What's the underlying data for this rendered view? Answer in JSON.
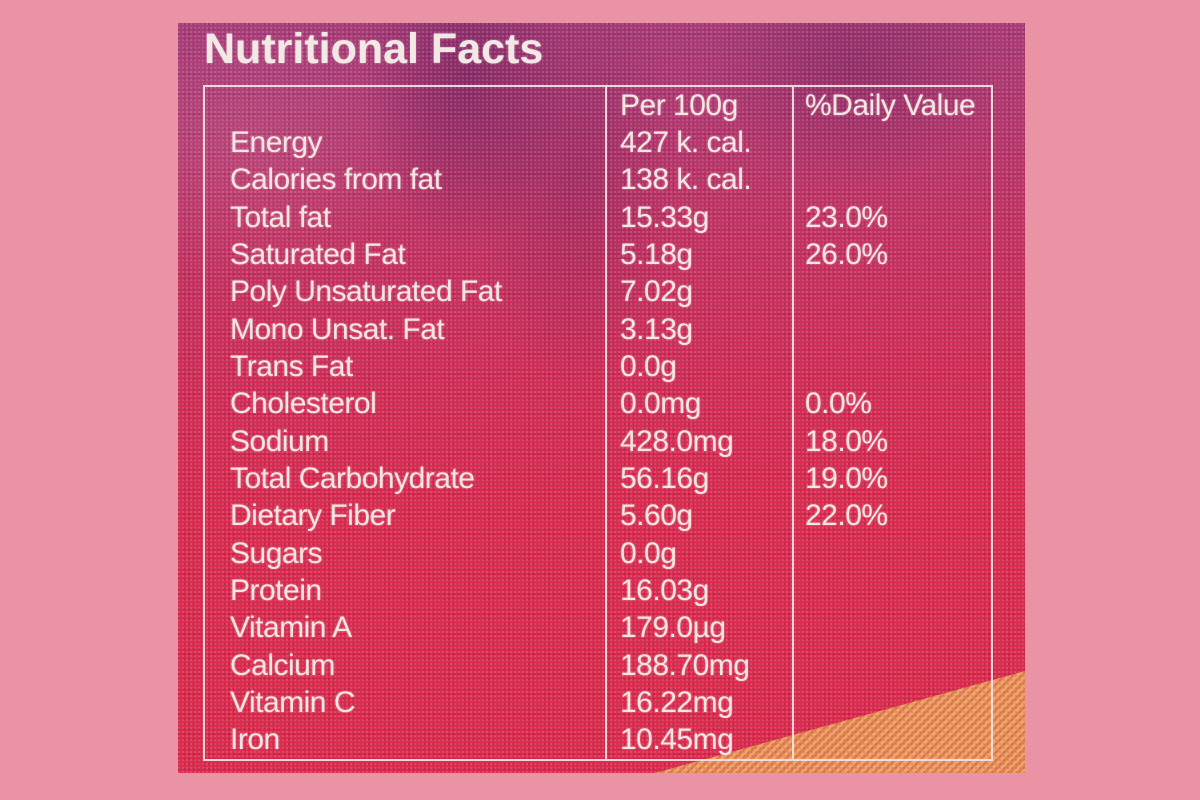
{
  "colors": {
    "background_pink": "#ea93a4",
    "label_magenta_top": "#a63a78",
    "label_red_bottom": "#dc2a4b",
    "text_cream": "#f4e6e2",
    "table_border_white": "#f6e3e6",
    "orange_stripe_light": "#efa96d",
    "orange_stripe_dark": "#df8351"
  },
  "label": {
    "title": "Nutritional Facts",
    "table": {
      "headers": {
        "amount": "Per 100g",
        "daily_value": "%Daily Value"
      },
      "rows": [
        {
          "name": "Energy",
          "amount": "427 k. cal.",
          "dv": ""
        },
        {
          "name": "Calories from fat",
          "amount": "138 k. cal.",
          "dv": ""
        },
        {
          "name": "Total fat",
          "amount": "15.33g",
          "dv": "23.0%"
        },
        {
          "name": "Saturated Fat",
          "amount": "5.18g",
          "dv": "26.0%"
        },
        {
          "name": "Poly Unsaturated Fat",
          "amount": "7.02g",
          "dv": ""
        },
        {
          "name": "Mono Unsat. Fat",
          "amount": "3.13g",
          "dv": ""
        },
        {
          "name": "Trans Fat",
          "amount": "0.0g",
          "dv": ""
        },
        {
          "name": "Cholesterol",
          "amount": "0.0mg",
          "dv": "0.0%"
        },
        {
          "name": "Sodium",
          "amount": "428.0mg",
          "dv": "18.0%"
        },
        {
          "name": "Total Carbohydrate",
          "amount": "56.16g",
          "dv": "19.0%"
        },
        {
          "name": "Dietary Fiber",
          "amount": "5.60g",
          "dv": "22.0%"
        },
        {
          "name": "Sugars",
          "amount": "0.0g",
          "dv": ""
        },
        {
          "name": "Protein",
          "amount": "16.03g",
          "dv": ""
        },
        {
          "name": "Vitamin A",
          "amount": "179.0µg",
          "dv": ""
        },
        {
          "name": "Calcium",
          "amount": "188.70mg",
          "dv": ""
        },
        {
          "name": "Vitamin C",
          "amount": "16.22mg",
          "dv": ""
        },
        {
          "name": "Iron",
          "amount": "10.45mg",
          "dv": ""
        }
      ]
    }
  }
}
